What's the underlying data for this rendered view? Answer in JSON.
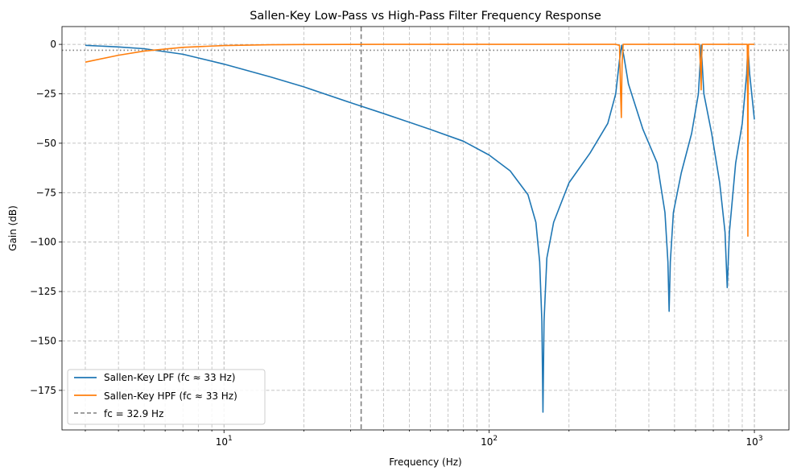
{
  "chart_data": {
    "type": "line",
    "title": "Sallen-Key Low-Pass vs High-Pass Filter Frequency Response",
    "xlabel": "Frequency (Hz)",
    "ylabel": "Gain (dB)",
    "xscale": "log",
    "xlim": [
      2.45,
      1350
    ],
    "ylim": [
      -195,
      9
    ],
    "x_ticks": [
      {
        "value": 10,
        "base": "10",
        "exp": "1"
      },
      {
        "value": 100,
        "base": "10",
        "exp": "2"
      },
      {
        "value": 1000,
        "base": "10",
        "exp": "3"
      }
    ],
    "y_ticks": [
      0,
      -25,
      -50,
      -75,
      -100,
      -125,
      -150,
      -175
    ],
    "y_tick_labels": [
      "0",
      "−25",
      "−50",
      "−75",
      "−100",
      "−125",
      "−150",
      "−175"
    ],
    "grid": true,
    "legend_position": "lower-left",
    "colors": {
      "lpf": "#1f77b4",
      "hpf": "#ff7f0e",
      "fc": "#7f7f7f",
      "ref": "#7f7f7f"
    },
    "reference_level_db": -3,
    "series": [
      {
        "name": "Sallen-Key LPF (fc ≈ 33 Hz)",
        "color": "#1f77b4",
        "points": [
          [
            3.0,
            -0.5
          ],
          [
            4.0,
            -1.3
          ],
          [
            5.0,
            -2.2
          ],
          [
            7.0,
            -5.0
          ],
          [
            10.0,
            -10.0
          ],
          [
            15.0,
            -16.5
          ],
          [
            20.0,
            -21.5
          ],
          [
            30.0,
            -29.5
          ],
          [
            40.0,
            -35.0
          ],
          [
            60.0,
            -43.0
          ],
          [
            80.0,
            -49.0
          ],
          [
            100.0,
            -56.0
          ],
          [
            120.0,
            -64.0
          ],
          [
            140.0,
            -76.0
          ],
          [
            150.0,
            -90.0
          ],
          [
            155.0,
            -110.0
          ],
          [
            158.0,
            -140.0
          ],
          [
            159.5,
            -186.0
          ],
          [
            161.0,
            -140.0
          ],
          [
            165.0,
            -108.0
          ],
          [
            175.0,
            -90.0
          ],
          [
            200.0,
            -70.0
          ],
          [
            240.0,
            -55.0
          ],
          [
            280.0,
            -40.0
          ],
          [
            300.0,
            -25.0
          ],
          [
            310.0,
            -8.0
          ],
          [
            316.0,
            -0.5
          ],
          [
            322.0,
            -6.0
          ],
          [
            335.0,
            -20.0
          ],
          [
            380.0,
            -43.0
          ],
          [
            430.0,
            -60.0
          ],
          [
            460.0,
            -85.0
          ],
          [
            472.0,
            -110.0
          ],
          [
            477.0,
            -135.0
          ],
          [
            482.0,
            -110.0
          ],
          [
            495.0,
            -85.0
          ],
          [
            530.0,
            -65.0
          ],
          [
            580.0,
            -45.0
          ],
          [
            615.0,
            -25.0
          ],
          [
            630.0,
            -0.5
          ],
          [
            645.0,
            -25.0
          ],
          [
            690.0,
            -45.0
          ],
          [
            740.0,
            -70.0
          ],
          [
            775.0,
            -95.0
          ],
          [
            790.0,
            -123.0
          ],
          [
            805.0,
            -95.0
          ],
          [
            850.0,
            -60.0
          ],
          [
            900.0,
            -40.0
          ],
          [
            935.0,
            -15.0
          ],
          [
            945.0,
            -0.5
          ],
          [
            960.0,
            -15.0
          ],
          [
            1000.0,
            -38.0
          ]
        ]
      },
      {
        "name": "Sallen-Key HPF (fc ≈ 33 Hz)",
        "color": "#ff7f0e",
        "points": [
          [
            3.0,
            -9.0
          ],
          [
            4.0,
            -5.5
          ],
          [
            5.0,
            -3.4
          ],
          [
            7.0,
            -1.5
          ],
          [
            10.0,
            -0.6
          ],
          [
            15.0,
            -0.2
          ],
          [
            20.0,
            -0.1
          ],
          [
            40.0,
            0.0
          ],
          [
            100.0,
            0.0
          ],
          [
            300.0,
            0.0
          ],
          [
            310.0,
            -0.5
          ],
          [
            313.0,
            -25.0
          ],
          [
            315.0,
            -37.0
          ],
          [
            317.0,
            -10.0
          ],
          [
            320.0,
            0.0
          ],
          [
            330.0,
            0.0
          ],
          [
            620.0,
            0.0
          ],
          [
            628.0,
            -15.0
          ],
          [
            630.0,
            -23.0
          ],
          [
            632.0,
            -8.0
          ],
          [
            636.0,
            0.0
          ],
          [
            940.0,
            0.0
          ],
          [
            943.0,
            -30.0
          ],
          [
            945.0,
            -97.0
          ],
          [
            947.0,
            -30.0
          ],
          [
            950.0,
            0.0
          ],
          [
            1000.0,
            0.0
          ]
        ]
      }
    ],
    "fc_line": {
      "name": "fc = 32.9 Hz",
      "x": 32.9,
      "color": "#7f7f7f"
    }
  }
}
